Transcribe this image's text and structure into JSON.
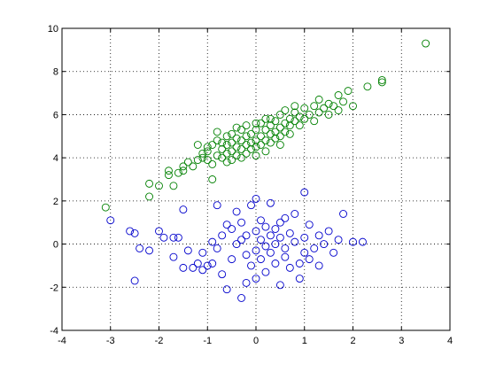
{
  "chart_data": {
    "type": "scatter",
    "title": "",
    "xlabel": "",
    "ylabel": "",
    "xlim": [
      -4,
      4
    ],
    "ylim": [
      -4,
      10
    ],
    "xticks": [
      -4,
      -3,
      -2,
      -1,
      0,
      1,
      2,
      3,
      4
    ],
    "yticks": [
      -4,
      -2,
      0,
      2,
      4,
      6,
      8,
      10
    ],
    "xtick_labels": [
      "-4",
      "-3",
      "-2",
      "-1",
      "0",
      "1",
      "2",
      "3",
      "4"
    ],
    "ytick_labels": [
      "-4",
      "-2",
      "0",
      "2",
      "4",
      "6",
      "8",
      "10"
    ],
    "grid": true,
    "marker": "open-circle",
    "series": [
      {
        "color": "#008000",
        "points": [
          [
            -3.1,
            1.7
          ],
          [
            -2.2,
            2.2
          ],
          [
            -2.0,
            2.7
          ],
          [
            -2.2,
            2.8
          ],
          [
            -1.8,
            3.2
          ],
          [
            -1.8,
            3.4
          ],
          [
            -1.7,
            2.7
          ],
          [
            -1.6,
            3.3
          ],
          [
            -1.5,
            3.6
          ],
          [
            -1.5,
            3.4
          ],
          [
            -1.4,
            3.8
          ],
          [
            -1.3,
            3.6
          ],
          [
            -1.2,
            3.9
          ],
          [
            -1.1,
            4.2
          ],
          [
            -1.1,
            4.0
          ],
          [
            -1.0,
            3.9
          ],
          [
            -1.0,
            4.5
          ],
          [
            -1.0,
            4.3
          ],
          [
            -0.9,
            4.6
          ],
          [
            -0.9,
            3.7
          ],
          [
            -0.9,
            3.0
          ],
          [
            -0.8,
            4.1
          ],
          [
            -0.8,
            4.8
          ],
          [
            -0.8,
            5.2
          ],
          [
            -0.7,
            4.4
          ],
          [
            -0.7,
            4.0
          ],
          [
            -0.7,
            4.7
          ],
          [
            -0.6,
            4.6
          ],
          [
            -0.6,
            4.2
          ],
          [
            -0.6,
            5.0
          ],
          [
            -0.5,
            4.3
          ],
          [
            -0.5,
            3.9
          ],
          [
            -0.5,
            4.7
          ],
          [
            -0.5,
            5.1
          ],
          [
            -0.4,
            4.5
          ],
          [
            -0.4,
            4.1
          ],
          [
            -0.4,
            4.9
          ],
          [
            -0.3,
            4.4
          ],
          [
            -0.3,
            4.8
          ],
          [
            -0.3,
            5.3
          ],
          [
            -0.3,
            4.0
          ],
          [
            -0.2,
            4.6
          ],
          [
            -0.2,
            5.0
          ],
          [
            -0.2,
            4.2
          ],
          [
            -0.2,
            5.5
          ],
          [
            -0.1,
            4.7
          ],
          [
            -0.1,
            4.4
          ],
          [
            -0.1,
            5.1
          ],
          [
            0.0,
            4.8
          ],
          [
            0.0,
            4.5
          ],
          [
            0.0,
            5.3
          ],
          [
            0.0,
            4.1
          ],
          [
            0.1,
            5.0
          ],
          [
            0.1,
            4.6
          ],
          [
            0.1,
            5.6
          ],
          [
            0.2,
            4.8
          ],
          [
            0.2,
            5.3
          ],
          [
            0.2,
            4.3
          ],
          [
            0.3,
            5.1
          ],
          [
            0.3,
            5.5
          ],
          [
            0.3,
            4.7
          ],
          [
            0.3,
            5.8
          ],
          [
            0.4,
            5.2
          ],
          [
            0.4,
            4.9
          ],
          [
            0.4,
            5.7
          ],
          [
            0.5,
            5.4
          ],
          [
            0.5,
            5.0
          ],
          [
            0.5,
            6.0
          ],
          [
            0.5,
            4.6
          ],
          [
            0.6,
            5.6
          ],
          [
            0.6,
            5.2
          ],
          [
            0.6,
            6.2
          ],
          [
            0.7,
            5.5
          ],
          [
            0.7,
            5.8
          ],
          [
            0.7,
            5.1
          ],
          [
            0.8,
            5.7
          ],
          [
            0.8,
            6.1
          ],
          [
            0.9,
            5.9
          ],
          [
            0.9,
            5.5
          ],
          [
            1.0,
            6.3
          ],
          [
            1.0,
            5.8
          ],
          [
            1.1,
            6.0
          ],
          [
            1.2,
            6.4
          ],
          [
            1.2,
            5.7
          ],
          [
            1.3,
            6.1
          ],
          [
            1.3,
            6.7
          ],
          [
            1.4,
            6.3
          ],
          [
            1.5,
            6.5
          ],
          [
            1.5,
            6.0
          ],
          [
            1.6,
            6.4
          ],
          [
            1.7,
            6.9
          ],
          [
            1.7,
            6.2
          ],
          [
            1.8,
            6.6
          ],
          [
            1.9,
            7.1
          ],
          [
            2.0,
            6.4
          ],
          [
            2.3,
            7.3
          ],
          [
            2.6,
            7.5
          ],
          [
            2.6,
            7.6
          ],
          [
            3.5,
            9.3
          ],
          [
            -1.2,
            4.6
          ],
          [
            -0.4,
            5.4
          ],
          [
            0.2,
            5.8
          ],
          [
            0.8,
            6.4
          ],
          [
            -0.6,
            3.8
          ],
          [
            0.0,
            5.6
          ]
        ]
      },
      {
        "color": "#0000cc",
        "points": [
          [
            -3.0,
            1.1
          ],
          [
            -2.6,
            0.6
          ],
          [
            -2.5,
            -1.7
          ],
          [
            -2.5,
            0.5
          ],
          [
            -2.4,
            -0.2
          ],
          [
            -2.2,
            -0.3
          ],
          [
            -2.0,
            0.6
          ],
          [
            -1.9,
            0.3
          ],
          [
            -1.7,
            0.3
          ],
          [
            -1.7,
            -0.6
          ],
          [
            -1.6,
            0.3
          ],
          [
            -1.5,
            1.6
          ],
          [
            -1.4,
            -0.3
          ],
          [
            -1.3,
            -1.1
          ],
          [
            -1.2,
            -0.9
          ],
          [
            -1.1,
            -1.2
          ],
          [
            -1.1,
            -0.4
          ],
          [
            -1.0,
            -1.0
          ],
          [
            -0.9,
            -0.9
          ],
          [
            -0.9,
            0.1
          ],
          [
            -0.8,
            -0.2
          ],
          [
            -0.7,
            -1.4
          ],
          [
            -0.7,
            0.4
          ],
          [
            -0.6,
            -2.1
          ],
          [
            -0.6,
            0.9
          ],
          [
            -0.5,
            -0.7
          ],
          [
            -0.5,
            0.7
          ],
          [
            -0.4,
            1.5
          ],
          [
            -0.4,
            0.0
          ],
          [
            -0.3,
            -2.5
          ],
          [
            -0.3,
            1.0
          ],
          [
            -0.2,
            -0.5
          ],
          [
            -0.2,
            0.4
          ],
          [
            -0.1,
            -1.0
          ],
          [
            -0.1,
            1.8
          ],
          [
            0.0,
            -0.3
          ],
          [
            0.0,
            0.6
          ],
          [
            0.0,
            -1.6
          ],
          [
            0.1,
            0.2
          ],
          [
            0.1,
            -0.7
          ],
          [
            0.1,
            1.1
          ],
          [
            0.2,
            -0.1
          ],
          [
            0.2,
            0.8
          ],
          [
            0.2,
            -1.3
          ],
          [
            0.3,
            0.4
          ],
          [
            0.3,
            -0.4
          ],
          [
            0.3,
            1.9
          ],
          [
            0.4,
            0.0
          ],
          [
            0.4,
            -0.9
          ],
          [
            0.4,
            0.7
          ],
          [
            0.5,
            -1.9
          ],
          [
            0.5,
            0.3
          ],
          [
            0.5,
            1.0
          ],
          [
            0.6,
            -0.2
          ],
          [
            0.6,
            -0.6
          ],
          [
            0.7,
            0.5
          ],
          [
            0.7,
            -1.1
          ],
          [
            0.8,
            1.4
          ],
          [
            0.8,
            0.1
          ],
          [
            0.9,
            -0.9
          ],
          [
            1.0,
            0.3
          ],
          [
            1.0,
            2.4
          ],
          [
            1.0,
            -0.4
          ],
          [
            1.1,
            -0.7
          ],
          [
            1.1,
            0.9
          ],
          [
            1.2,
            -0.2
          ],
          [
            1.3,
            0.4
          ],
          [
            1.3,
            -1.0
          ],
          [
            1.4,
            0.0
          ],
          [
            1.5,
            0.6
          ],
          [
            1.6,
            -0.4
          ],
          [
            1.7,
            0.2
          ],
          [
            1.8,
            1.4
          ],
          [
            2.0,
            0.1
          ],
          [
            2.2,
            0.1
          ],
          [
            -0.8,
            1.8
          ],
          [
            -0.2,
            -1.8
          ],
          [
            0.6,
            1.2
          ],
          [
            -1.5,
            -1.1
          ],
          [
            0.9,
            -1.6
          ],
          [
            -0.3,
            0.2
          ],
          [
            0.0,
            2.1
          ]
        ]
      }
    ]
  }
}
